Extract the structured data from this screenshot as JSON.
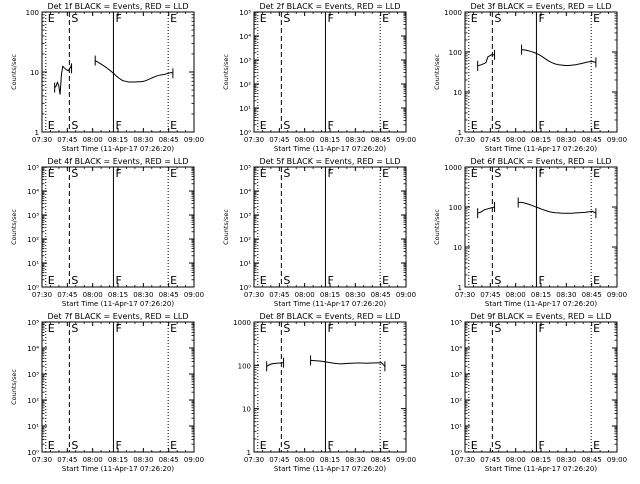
{
  "chart_data": [
    {
      "type": "line",
      "title": "Det 1f BLACK = Events, RED = LLD",
      "xlabel": "Start Time (11-Apr-17 07:26:20)",
      "ylabel": "Counts/sec",
      "yscale": "log",
      "ylim": [
        1,
        100
      ],
      "ytick_labels": [
        "1",
        "10",
        "100"
      ],
      "xtick_labels": [
        "07:30",
        "07:45",
        "08:00",
        "08:15",
        "08:30",
        "08:45",
        "09:00"
      ],
      "xlim_minutes": [
        0,
        90
      ],
      "markers": [
        {
          "label": "E",
          "minute": 0
        },
        {
          "label": "S",
          "minute": 15
        },
        {
          "label": "F",
          "minute": 45
        },
        {
          "label": "E",
          "minute": 75
        }
      ],
      "series": [
        {
          "color": "#000000",
          "points": [
            [
              7.5,
              5.5
            ],
            [
              8.3,
              5.8
            ],
            [
              9.1,
              6.7
            ],
            [
              9.9,
              6.0
            ],
            [
              10.7,
              4.2
            ],
            [
              11.5,
              9.0
            ],
            [
              12.3,
              12.5
            ],
            [
              13.1,
              11.8
            ],
            [
              13.9,
              11.2
            ],
            [
              14.7,
              10.8
            ],
            [
              15.5,
              10.5
            ],
            [
              16.3,
              11.2
            ],
            [
              17.1,
              12.5
            ],
            [
              17.5,
              11.5
            ]
          ]
        },
        {
          "color": "#000000",
          "points": [
            [
              31.5,
              15.5
            ],
            [
              33.3,
              14.5
            ],
            [
              35.1,
              13.5
            ],
            [
              36.9,
              12.5
            ],
            [
              38.7,
              11.5
            ],
            [
              40.5,
              10.5
            ],
            [
              42.3,
              9.5
            ],
            [
              44.1,
              8.5
            ],
            [
              45.9,
              7.8
            ],
            [
              47.7,
              7.2
            ],
            [
              49.5,
              7.0
            ],
            [
              51.3,
              6.8
            ],
            [
              53.1,
              6.8
            ],
            [
              54.9,
              6.8
            ],
            [
              56.7,
              6.9
            ],
            [
              58.5,
              6.9
            ],
            [
              60.3,
              7.0
            ],
            [
              62.1,
              7.3
            ],
            [
              63.9,
              7.7
            ],
            [
              65.7,
              8.1
            ],
            [
              67.5,
              8.5
            ],
            [
              69.3,
              8.8
            ],
            [
              71.1,
              9.0
            ],
            [
              72.9,
              9.2
            ],
            [
              74.7,
              9.5
            ],
            [
              76.5,
              9.8
            ],
            [
              77.5,
              9.5
            ]
          ]
        }
      ]
    },
    {
      "type": "line",
      "title": "Det 2f BLACK = Events, RED = LLD",
      "xlabel": "Start Time (11-Apr-17 07:26:20)",
      "ylabel": "Counts/sec",
      "yscale": "log",
      "ylim": [
        1,
        100000
      ],
      "ytick_labels": [
        "10⁰",
        "10¹",
        "10²",
        "10³",
        "10⁴",
        "10⁵"
      ],
      "xtick_labels": [
        "07:30",
        "07:45",
        "08:00",
        "08:15",
        "08:30",
        "08:45",
        "09:00"
      ],
      "xlim_minutes": [
        0,
        90
      ],
      "markers": [
        {
          "label": "E",
          "minute": 0
        },
        {
          "label": "S",
          "minute": 15
        },
        {
          "label": "F",
          "minute": 45
        },
        {
          "label": "E",
          "minute": 75
        }
      ],
      "series": []
    },
    {
      "type": "line",
      "title": "Det 3f BLACK = Events, RED = LLD",
      "xlabel": "Start Time (11-Apr-17 07:26:20)",
      "ylabel": "Counts/sec",
      "yscale": "log",
      "ylim": [
        1,
        1000
      ],
      "ytick_labels": [
        "1",
        "10",
        "100",
        "1000"
      ],
      "xtick_labels": [
        "07:30",
        "07:45",
        "08:00",
        "08:15",
        "08:30",
        "08:45",
        "09:00"
      ],
      "xlim_minutes": [
        0,
        90
      ],
      "markers": [
        {
          "label": "E",
          "minute": 0
        },
        {
          "label": "S",
          "minute": 15
        },
        {
          "label": "F",
          "minute": 45
        },
        {
          "label": "E",
          "minute": 75
        }
      ],
      "series": [
        {
          "color": "#000000",
          "points": [
            [
              7.5,
              45
            ],
            [
              9.5,
              48
            ],
            [
              11.5,
              52
            ],
            [
              12.5,
              55
            ],
            [
              13.5,
              75
            ],
            [
              14.5,
              80
            ],
            [
              15.5,
              85
            ],
            [
              17.5,
              85
            ]
          ]
        },
        {
          "color": "#000000",
          "points": [
            [
              33.5,
              115
            ],
            [
              35.5,
              112
            ],
            [
              37.5,
              108
            ],
            [
              39.5,
              102
            ],
            [
              41.5,
              95
            ],
            [
              43.5,
              87
            ],
            [
              45.5,
              78
            ],
            [
              47.5,
              68
            ],
            [
              49.5,
              60
            ],
            [
              51.5,
              54
            ],
            [
              53.5,
              50
            ],
            [
              55.5,
              48
            ],
            [
              57.5,
              47
            ],
            [
              59.5,
              46
            ],
            [
              61.5,
              46
            ],
            [
              63.5,
              47
            ],
            [
              65.5,
              48
            ],
            [
              67.5,
              50
            ],
            [
              69.5,
              52
            ],
            [
              71.5,
              55
            ],
            [
              73.5,
              57
            ],
            [
              75.5,
              58
            ],
            [
              77.5,
              55
            ]
          ]
        }
      ]
    },
    {
      "type": "line",
      "title": "Det 4f BLACK = Events, RED = LLD",
      "xlabel": "Start Time (11-Apr-17 07:26:20)",
      "ylabel": "Counts/sec",
      "yscale": "log",
      "ylim": [
        1,
        100000
      ],
      "ytick_labels": [
        "10⁰",
        "10¹",
        "10²",
        "10³",
        "10⁴",
        "10⁵"
      ],
      "xtick_labels": [
        "07:30",
        "07:45",
        "08:00",
        "08:15",
        "08:30",
        "08:45",
        "09:00"
      ],
      "xlim_minutes": [
        0,
        90
      ],
      "markers": [
        {
          "label": "E",
          "minute": 0
        },
        {
          "label": "S",
          "minute": 15
        },
        {
          "label": "F",
          "minute": 45
        },
        {
          "label": "E",
          "minute": 75
        }
      ],
      "series": []
    },
    {
      "type": "line",
      "title": "Det 5f BLACK = Events, RED = LLD",
      "xlabel": "Start Time (11-Apr-17 07:26:20)",
      "ylabel": "Counts/sec",
      "yscale": "log",
      "ylim": [
        1,
        100000
      ],
      "ytick_labels": [
        "10⁰",
        "10¹",
        "10²",
        "10³",
        "10⁴",
        "10⁵"
      ],
      "xtick_labels": [
        "07:30",
        "07:45",
        "08:00",
        "08:15",
        "08:30",
        "08:45",
        "09:00"
      ],
      "xlim_minutes": [
        0,
        90
      ],
      "markers": [
        {
          "label": "E",
          "minute": 0
        },
        {
          "label": "S",
          "minute": 15
        },
        {
          "label": "F",
          "minute": 45
        },
        {
          "label": "E",
          "minute": 75
        }
      ],
      "series": []
    },
    {
      "type": "line",
      "title": "Det 6f BLACK = Events, RED = LLD",
      "xlabel": "Start Time (11-Apr-17 07:26:20)",
      "ylabel": "Counts/sec",
      "yscale": "log",
      "ylim": [
        1,
        1000
      ],
      "ytick_labels": [
        "1",
        "10",
        "100",
        "1000"
      ],
      "xtick_labels": [
        "07:30",
        "07:45",
        "08:00",
        "08:15",
        "08:30",
        "08:45",
        "09:00"
      ],
      "xlim_minutes": [
        0,
        90
      ],
      "markers": [
        {
          "label": "E",
          "minute": 0
        },
        {
          "label": "S",
          "minute": 15
        },
        {
          "label": "F",
          "minute": 45
        },
        {
          "label": "E",
          "minute": 75
        }
      ],
      "series": [
        {
          "color": "#000000",
          "points": [
            [
              7.5,
              70
            ],
            [
              9.5,
              75
            ],
            [
              11.5,
              85
            ],
            [
              13.5,
              90
            ],
            [
              15.5,
              95
            ],
            [
              17.5,
              100
            ]
          ]
        },
        {
          "color": "#000000",
          "points": [
            [
              31.5,
              130
            ],
            [
              33.5,
              130
            ],
            [
              35.5,
              125
            ],
            [
              37.5,
              118
            ],
            [
              39.5,
              110
            ],
            [
              41.5,
              102
            ],
            [
              43.5,
              95
            ],
            [
              45.5,
              88
            ],
            [
              47.5,
              82
            ],
            [
              49.5,
              77
            ],
            [
              51.5,
              74
            ],
            [
              53.5,
              72
            ],
            [
              55.5,
              71
            ],
            [
              57.5,
              70
            ],
            [
              59.5,
              70
            ],
            [
              61.5,
              70
            ],
            [
              63.5,
              70
            ],
            [
              65.5,
              71
            ],
            [
              67.5,
              72
            ],
            [
              69.5,
              73
            ],
            [
              71.5,
              74
            ],
            [
              73.5,
              76
            ],
            [
              75.5,
              78
            ],
            [
              77.5,
              70
            ]
          ]
        }
      ]
    },
    {
      "type": "line",
      "title": "Det 7f BLACK = Events, RED = LLD",
      "xlabel": "Start Time (11-Apr-17 07:26:20)",
      "ylabel": "Counts/sec",
      "yscale": "log",
      "ylim": [
        1,
        100000
      ],
      "ytick_labels": [
        "10⁰",
        "10¹",
        "10²",
        "10³",
        "10⁴",
        "10⁵"
      ],
      "xtick_labels": [
        "07:30",
        "07:45",
        "08:00",
        "08:15",
        "08:30",
        "08:45",
        "09:00"
      ],
      "xlim_minutes": [
        0,
        90
      ],
      "markers": [
        {
          "label": "E",
          "minute": 0
        },
        {
          "label": "S",
          "minute": 15
        },
        {
          "label": "F",
          "minute": 45
        },
        {
          "label": "E",
          "minute": 75
        }
      ],
      "series": []
    },
    {
      "type": "line",
      "title": "Det 8f BLACK = Events, RED = LLD",
      "xlabel": "Start Time (11-Apr-17 07:26:20)",
      "ylabel": "",
      "yscale": "log",
      "ylim": [
        1,
        1000
      ],
      "ytick_labels": [
        "1",
        "10",
        "100",
        "1000"
      ],
      "xtick_labels": [
        "07:30",
        "07:45",
        "08:00",
        "08:15",
        "08:30",
        "08:45",
        "09:00"
      ],
      "xlim_minutes": [
        0,
        90
      ],
      "markers": [
        {
          "label": "E",
          "minute": 0
        },
        {
          "label": "S",
          "minute": 15
        },
        {
          "label": "F",
          "minute": 45
        },
        {
          "label": "E",
          "minute": 75
        }
      ],
      "series": [
        {
          "color": "#000000",
          "points": [
            [
              7.5,
              95
            ],
            [
              9.5,
              105
            ],
            [
              11.5,
              110
            ],
            [
              13.5,
              112
            ],
            [
              15.5,
              113
            ],
            [
              17.5,
              115
            ]
          ]
        },
        {
          "color": "#000000",
          "points": [
            [
              33.5,
              130
            ],
            [
              36.5,
              128
            ],
            [
              39.5,
              125
            ],
            [
              42.5,
              120
            ],
            [
              45.5,
              115
            ],
            [
              48.5,
              110
            ],
            [
              51.5,
              108
            ],
            [
              54.5,
              110
            ],
            [
              57.5,
              112
            ],
            [
              60.5,
              113
            ],
            [
              63.5,
              113
            ],
            [
              66.5,
              112
            ],
            [
              69.5,
              113
            ],
            [
              72.5,
              114
            ],
            [
              75.5,
              115
            ],
            [
              77.5,
              95
            ]
          ]
        }
      ]
    },
    {
      "type": "line",
      "title": "Det 9f BLACK = Events, RED = LLD",
      "xlabel": "Start Time (11-Apr-17 07:26:20)",
      "ylabel": "",
      "yscale": "log",
      "ylim": [
        1,
        100000
      ],
      "ytick_labels": [
        "10⁰",
        "10¹",
        "10²",
        "10³",
        "10⁴",
        "10⁵"
      ],
      "xtick_labels": [
        "07:30",
        "07:45",
        "08:00",
        "08:15",
        "08:30",
        "08:45",
        "09:00"
      ],
      "xlim_minutes": [
        0,
        90
      ],
      "markers": [
        {
          "label": "E",
          "minute": 0
        },
        {
          "label": "S",
          "minute": 15
        },
        {
          "label": "F",
          "minute": 45
        },
        {
          "label": "E",
          "minute": 75
        }
      ],
      "series": []
    }
  ]
}
